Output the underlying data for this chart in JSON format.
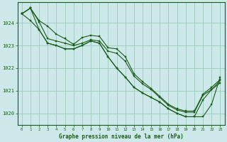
{
  "title": "Graphe pression niveau de la mer (hPa)",
  "bg_color": "#cce8e8",
  "grid_color": "#99ccbb",
  "line_color": "#1a5c1a",
  "marker_color": "#1a5c1a",
  "xlim": [
    -0.5,
    23.5
  ],
  "ylim": [
    1019.5,
    1024.9
  ],
  "yticks": [
    1020,
    1021,
    1022,
    1023,
    1024
  ],
  "xticks": [
    0,
    1,
    2,
    3,
    4,
    5,
    6,
    7,
    8,
    9,
    10,
    11,
    12,
    13,
    14,
    15,
    16,
    17,
    18,
    19,
    20,
    21,
    22,
    23
  ],
  "series": [
    [
      1024.4,
      1024.65,
      1024.1,
      1023.85,
      1023.5,
      1023.3,
      1023.05,
      1023.35,
      1023.45,
      1023.4,
      1022.9,
      1022.85,
      1022.5,
      1021.75,
      1021.4,
      1021.1,
      1020.75,
      1020.4,
      1020.2,
      1020.1,
      1020.1,
      1020.85,
      1021.15,
      1021.5
    ],
    [
      1024.4,
      1024.65,
      1024.05,
      1023.3,
      1023.2,
      1023.1,
      1023.0,
      1023.1,
      1023.25,
      1023.2,
      1022.75,
      1022.65,
      1022.3,
      1021.65,
      1021.3,
      1021.05,
      1020.7,
      1020.35,
      1020.15,
      1020.05,
      1020.05,
      1020.8,
      1021.05,
      1021.45
    ],
    [
      1024.4,
      1024.1,
      1023.7,
      1023.1,
      1023.0,
      1022.85,
      1022.85,
      1023.0,
      1023.2,
      1023.1,
      1022.5,
      1022.0,
      1021.6,
      1021.15,
      1020.9,
      1020.7,
      1020.5,
      1020.2,
      1020.0,
      1019.85,
      1019.85,
      1020.6,
      1021.05,
      1021.35
    ],
    [
      1024.4,
      1024.65,
      1023.7,
      1023.1,
      1023.0,
      1022.85,
      1022.85,
      1023.0,
      1023.2,
      1023.1,
      1022.5,
      1022.0,
      1021.6,
      1021.15,
      1020.9,
      1020.7,
      1020.5,
      1020.2,
      1020.0,
      1019.85,
      1019.85,
      1019.85,
      1020.4,
      1021.6
    ]
  ]
}
